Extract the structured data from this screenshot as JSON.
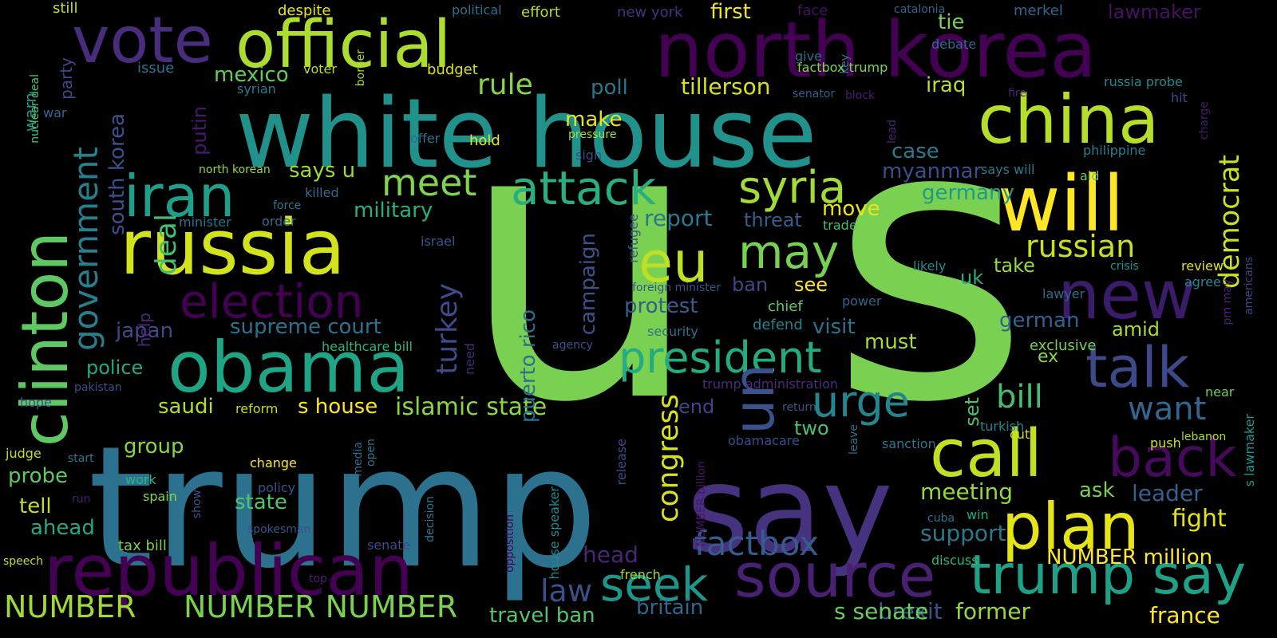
{
  "words": [
    {
      "text": "u",
      "color": "#7ad151"
    },
    {
      "text": "s",
      "color": "#7ad151"
    },
    {
      "text": "trump",
      "color": "#2c728e"
    },
    {
      "text": "white house",
      "color": "#21918c"
    },
    {
      "text": "say",
      "color": "#46327e"
    },
    {
      "text": "north korea",
      "color": "#440154"
    },
    {
      "text": "official",
      "color": "#addc30"
    },
    {
      "text": "vote",
      "color": "#472d7b"
    },
    {
      "text": "russia",
      "color": "#d2e21b"
    },
    {
      "text": "clinton",
      "color": "#5ec962"
    },
    {
      "text": "china",
      "color": "#b5de2b"
    },
    {
      "text": "will",
      "color": "#fde725"
    },
    {
      "text": "obama",
      "color": "#20a486"
    },
    {
      "text": "republican",
      "color": "#440154"
    },
    {
      "text": "iran",
      "color": "#1f9e89"
    },
    {
      "text": "new",
      "color": "#3b1c6b"
    },
    {
      "text": "call",
      "color": "#c2df23"
    },
    {
      "text": "plan",
      "color": "#e5e419"
    },
    {
      "text": "source",
      "color": "#482173"
    },
    {
      "text": "talk",
      "color": "#3e4989"
    },
    {
      "text": "trump say",
      "color": "#1fa188"
    },
    {
      "text": "eu",
      "color": "#bddf26"
    },
    {
      "text": "president",
      "color": "#25ab82"
    },
    {
      "text": "election",
      "color": "#440154"
    },
    {
      "text": "attack",
      "color": "#29af7f"
    },
    {
      "text": "syria",
      "color": "#a2da37"
    },
    {
      "text": "meet",
      "color": "#7fd34e"
    },
    {
      "text": "seek",
      "color": "#1f968b"
    },
    {
      "text": "may",
      "color": "#75d054"
    },
    {
      "text": "un",
      "color": "#3b518b"
    },
    {
      "text": "back",
      "color": "#450a5c"
    },
    {
      "text": "urge",
      "color": "#25858e"
    },
    {
      "text": "government",
      "color": "#277f8e"
    },
    {
      "text": "factbox",
      "color": "#365c8d"
    },
    {
      "text": "russian",
      "color": "#c8e020"
    },
    {
      "text": "democrat",
      "color": "#cae11f"
    },
    {
      "text": "bill",
      "color": "#44bf70"
    },
    {
      "text": "NUMBER",
      "color": "#a0da39"
    },
    {
      "text": "NUMBER NUMBER",
      "color": "#7ad151"
    },
    {
      "text": "congress",
      "color": "#d8e219"
    },
    {
      "text": "want",
      "color": "#31668e"
    },
    {
      "text": "turkey",
      "color": "#3e4a89"
    },
    {
      "text": "deal",
      "color": "#42be71"
    },
    {
      "text": "rule",
      "color": "#86d549"
    },
    {
      "text": "islamic state",
      "color": "#8bd646"
    },
    {
      "text": "law",
      "color": "#3c4f8a"
    },
    {
      "text": "brexit",
      "color": "#3b518b"
    },
    {
      "text": "s senate",
      "color": "#69cd5b"
    },
    {
      "text": "former",
      "color": "#95d840"
    },
    {
      "text": "france",
      "color": "#fde725"
    },
    {
      "text": "travel ban",
      "color": "#54c568"
    },
    {
      "text": "britain",
      "color": "#31678e"
    },
    {
      "text": "head",
      "color": "#482576"
    },
    {
      "text": "NUMBER million",
      "color": "#fde725"
    },
    {
      "text": "fight",
      "color": "#e2e418"
    },
    {
      "text": "support",
      "color": "#2a788e"
    },
    {
      "text": "meeting",
      "color": "#95d840"
    },
    {
      "text": "leader",
      "color": "#34608d"
    },
    {
      "text": "ask",
      "color": "#7ad151"
    },
    {
      "text": "tillerson",
      "color": "#d8e219"
    },
    {
      "text": "iraq",
      "color": "#b8de29"
    },
    {
      "text": "myanmar",
      "color": "#3c4f8a"
    },
    {
      "text": "germany",
      "color": "#1f9a8a"
    },
    {
      "text": "mexico",
      "color": "#65cb5e"
    },
    {
      "text": "poll",
      "color": "#2a768e"
    },
    {
      "text": "make",
      "color": "#e5e419"
    },
    {
      "text": "military",
      "color": "#2ab07f"
    },
    {
      "text": "says u",
      "color": "#9dd93b"
    },
    {
      "text": "south korea",
      "color": "#3b518b"
    },
    {
      "text": "putin",
      "color": "#481a6c"
    },
    {
      "text": "report",
      "color": "#2a788e"
    },
    {
      "text": "threat",
      "color": "#345f8d"
    },
    {
      "text": "move",
      "color": "#eae51a"
    },
    {
      "text": "supreme court",
      "color": "#2c728e"
    },
    {
      "text": "japan",
      "color": "#3e4a89"
    },
    {
      "text": "police",
      "color": "#22a884"
    },
    {
      "text": "puerto rico",
      "color": "#2e6e8e"
    },
    {
      "text": "campaign",
      "color": "#3b528b"
    },
    {
      "text": "protest",
      "color": "#365d8d"
    },
    {
      "text": "visit",
      "color": "#2d718e"
    },
    {
      "text": "must",
      "color": "#a5db36"
    },
    {
      "text": "german",
      "color": "#33638d"
    },
    {
      "text": "amid",
      "color": "#a8db34"
    },
    {
      "text": "uk",
      "color": "#27ad81"
    },
    {
      "text": "take",
      "color": "#9bd93c"
    },
    {
      "text": "ban",
      "color": "#3f4788"
    },
    {
      "text": "see",
      "color": "#fbe723"
    },
    {
      "text": "saudi",
      "color": "#b0dd2f"
    },
    {
      "text": "s house",
      "color": "#fde725"
    },
    {
      "text": "end",
      "color": "#414487"
    },
    {
      "text": "two",
      "color": "#48c16e"
    },
    {
      "text": "group",
      "color": "#88d548"
    },
    {
      "text": "probe",
      "color": "#5ec962"
    },
    {
      "text": "tell",
      "color": "#c0df25"
    },
    {
      "text": "ahead",
      "color": "#22a884"
    },
    {
      "text": "state",
      "color": "#51c56a"
    },
    {
      "text": "case",
      "color": "#297b8e"
    },
    {
      "text": "tie",
      "color": "#75d054"
    },
    {
      "text": "first",
      "color": "#f1e51d"
    },
    {
      "text": "lawmaker",
      "color": "#471164"
    },
    {
      "text": "set",
      "color": "#4ac16d"
    },
    {
      "text": "ex",
      "color": "#86d549"
    },
    {
      "text": "help",
      "color": "#482979"
    },
    {
      "text": "warn",
      "color": "#1f988b"
    },
    {
      "text": "party",
      "color": "#404688"
    },
    {
      "text": "still",
      "color": "#c2df23"
    },
    {
      "text": "despite",
      "color": "#e7e419"
    },
    {
      "text": "political",
      "color": "#2c728e"
    },
    {
      "text": "effort",
      "color": "#addc30"
    },
    {
      "text": "new york",
      "color": "#46317e"
    },
    {
      "text": "face",
      "color": "#471063"
    },
    {
      "text": "catalonia",
      "color": "#32648e"
    },
    {
      "text": "merkel",
      "color": "#33638d"
    },
    {
      "text": "issue",
      "color": "#2c728e"
    },
    {
      "text": "budget",
      "color": "#d8e219"
    },
    {
      "text": "voter",
      "color": "#bade28"
    },
    {
      "text": "border",
      "color": "#a8db34"
    },
    {
      "text": "factbox trump",
      "color": "#7fd34e"
    },
    {
      "text": "syrian",
      "color": "#287c8e"
    },
    {
      "text": "senator",
      "color": "#355e8d"
    },
    {
      "text": "block",
      "color": "#481f70"
    },
    {
      "text": "give",
      "color": "#2d708e"
    },
    {
      "text": "debate",
      "color": "#306a8e"
    },
    {
      "text": "russia probe",
      "color": "#23898e"
    },
    {
      "text": "hit",
      "color": "#3e4989"
    },
    {
      "text": "fire",
      "color": "#482475"
    },
    {
      "text": "key",
      "color": "#2a778e"
    },
    {
      "text": "nuclear deal",
      "color": "#4ac16d"
    },
    {
      "text": "war",
      "color": "#32658e"
    },
    {
      "text": "offer",
      "color": "#2e6e8e"
    },
    {
      "text": "hold",
      "color": "#e7e419"
    },
    {
      "text": "pressure",
      "color": "#a8db34"
    },
    {
      "text": "sign",
      "color": "#3f4889"
    },
    {
      "text": "lead",
      "color": "#482475"
    },
    {
      "text": "philippine",
      "color": "#287d8e"
    },
    {
      "text": "charge",
      "color": "#481a6c"
    },
    {
      "text": "aid",
      "color": "#6ccd5a"
    },
    {
      "text": "says will",
      "color": "#2a788e"
    },
    {
      "text": "north korean",
      "color": "#94d741"
    },
    {
      "text": "killed",
      "color": "#2f6c8e"
    },
    {
      "text": "force",
      "color": "#2a788e"
    },
    {
      "text": "minister",
      "color": "#2c738e"
    },
    {
      "text": "order",
      "color": "#2e6d8e"
    },
    {
      "text": "israel",
      "color": "#38588c"
    },
    {
      "text": "refugee",
      "color": "#39568c"
    },
    {
      "text": "trade",
      "color": "#48c16e"
    },
    {
      "text": "likely",
      "color": "#23898e"
    },
    {
      "text": "crisis",
      "color": "#1f958b"
    },
    {
      "text": "review",
      "color": "#e2e418"
    },
    {
      "text": "agree",
      "color": "#25858e"
    },
    {
      "text": "lawyer",
      "color": "#2f6b8e"
    },
    {
      "text": "americans",
      "color": "#3f4788"
    },
    {
      "text": "pm may",
      "color": "#482576"
    },
    {
      "text": "foreign minister",
      "color": "#3a538b"
    },
    {
      "text": "chief",
      "color": "#5ec962"
    },
    {
      "text": "power",
      "color": "#33638d"
    },
    {
      "text": "security",
      "color": "#2d718e"
    },
    {
      "text": "defend",
      "color": "#26828e"
    },
    {
      "text": "exclusive",
      "color": "#75d054"
    },
    {
      "text": "healthcare bill",
      "color": "#2fb47c"
    },
    {
      "text": "agency",
      "color": "#3b528b"
    },
    {
      "text": "need",
      "color": "#482878"
    },
    {
      "text": "trump administration",
      "color": "#472d7b"
    },
    {
      "text": "near",
      "color": "#6ccd5a"
    },
    {
      "text": "s lawmaker",
      "color": "#1f988b"
    },
    {
      "text": "hope",
      "color": "#3b528b"
    },
    {
      "text": "pakistan",
      "color": "#3d4e8a"
    },
    {
      "text": "reform",
      "color": "#c2df23"
    },
    {
      "text": "return",
      "color": "#3a548c"
    },
    {
      "text": "turkish",
      "color": "#25838e"
    },
    {
      "text": "cut",
      "color": "#cde11d"
    },
    {
      "text": "obamacare",
      "color": "#3e4a89"
    },
    {
      "text": "leave",
      "color": "#2d718e"
    },
    {
      "text": "sanction",
      "color": "#2b758e"
    },
    {
      "text": "push",
      "color": "#cae11f"
    },
    {
      "text": "lebanon",
      "color": "#addc30"
    },
    {
      "text": "judge",
      "color": "#b8de29"
    },
    {
      "text": "start",
      "color": "#2a788e"
    },
    {
      "text": "work",
      "color": "#2fb47c"
    },
    {
      "text": "change",
      "color": "#fde725"
    },
    {
      "text": "media",
      "color": "#2f6b8e"
    },
    {
      "text": "open",
      "color": "#2a768e"
    },
    {
      "text": "opposition",
      "color": "#440154"
    },
    {
      "text": "release",
      "color": "#3d4d8a"
    },
    {
      "text": "NUMBER billion",
      "color": "#481769"
    },
    {
      "text": "house speaker",
      "color": "#23898e"
    },
    {
      "text": "decision",
      "color": "#2a788e"
    },
    {
      "text": "cuba",
      "color": "#2a768e"
    },
    {
      "text": "win",
      "color": "#22a884"
    },
    {
      "text": "discuss",
      "color": "#2fb47c"
    },
    {
      "text": "run",
      "color": "#481f70"
    },
    {
      "text": "spain",
      "color": "#86d549"
    },
    {
      "text": "policy",
      "color": "#3b528b"
    },
    {
      "text": "show",
      "color": "#3a548c"
    },
    {
      "text": "tax bill",
      "color": "#7ad151"
    },
    {
      "text": "spokesman",
      "color": "#3b528b"
    },
    {
      "text": "senate",
      "color": "#3e4989"
    },
    {
      "text": "french",
      "color": "#a0da39"
    },
    {
      "text": "speech",
      "color": "#bade28"
    },
    {
      "text": "top",
      "color": "#482173"
    }
  ]
}
